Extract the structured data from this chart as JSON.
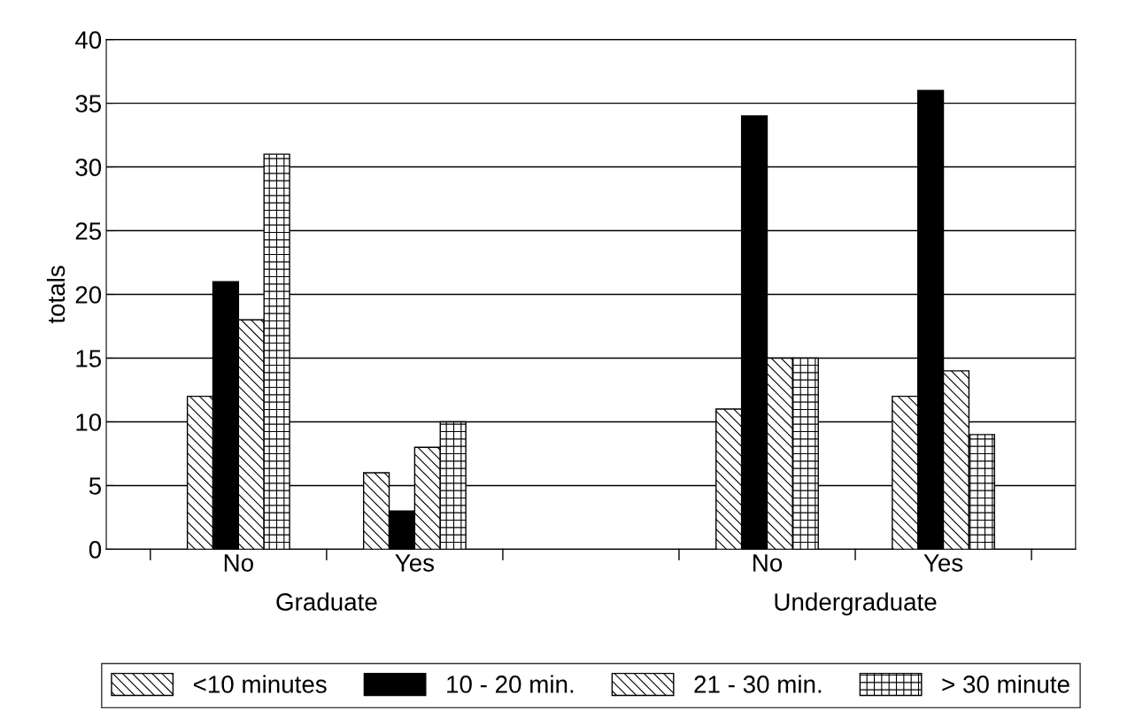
{
  "chart_data": {
    "type": "bar",
    "ylabel": "totals",
    "categories": [
      "No",
      "Yes",
      null,
      "No",
      "Yes"
    ],
    "series": [
      {
        "name": "<10 minutes",
        "color": "#000000",
        "values": [
          12,
          6,
          null,
          11,
          12
        ]
      },
      {
        "name": "10 - 20 min.",
        "color": "#000000",
        "values": [
          21,
          3,
          null,
          34,
          36
        ]
      },
      {
        "name": "21 - 30 min.",
        "color": "#000000",
        "values": [
          18,
          8,
          null,
          15,
          14
        ]
      },
      {
        "name": "> 30 minute",
        "color": "#000000",
        "values": [
          31,
          10,
          null,
          15,
          9
        ]
      }
    ],
    "annotations": [
      "Graduate",
      "Undergraduate"
    ],
    "ylim": [
      0,
      40
    ],
    "yticks": [
      0,
      5,
      10,
      15,
      20,
      25,
      30,
      35,
      40
    ],
    "grid": "y",
    "legend": "bottom"
  }
}
